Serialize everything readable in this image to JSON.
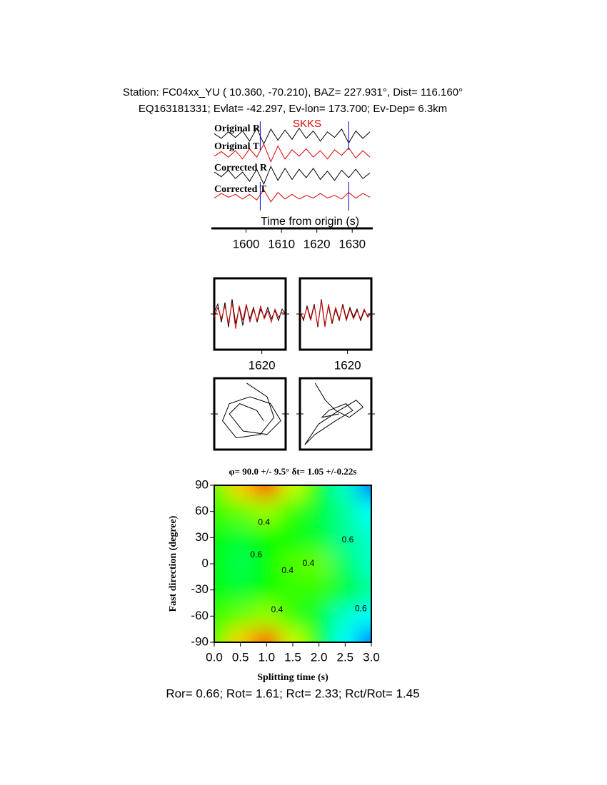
{
  "header": {
    "line1": "Station: FC04xx_YU (  10.360,  -70.210), BAZ=  227.931°, Dist=  116.160°",
    "line2": "EQ163181331; Evlat= -42.297, Ev-lon= 173.700; Ev-Dep=  6.3km"
  },
  "footer": "Ror= 0.66; Rot= 1.61; Rct= 2.33; Rct/Rot= 1.45",
  "chart_data": [
    {
      "type": "waveform",
      "annotation": "SKKS",
      "xlabel": "Time from origin (s)",
      "xlim": [
        1591,
        1635
      ],
      "xticks": [
        1600,
        1610,
        1620,
        1630
      ],
      "ylim": [
        -1,
        1
      ],
      "window": [
        1604,
        1629
      ],
      "x": [
        1591,
        1593,
        1595,
        1597,
        1599,
        1601,
        1603,
        1605,
        1607,
        1609,
        1611,
        1613,
        1615,
        1617,
        1619,
        1621,
        1623,
        1625,
        1627,
        1629,
        1631,
        1633,
        1635
      ],
      "series": [
        {
          "name": "Original R",
          "color": "#000000",
          "values": [
            0.2,
            -0.3,
            0.4,
            -0.2,
            0.5,
            -0.6,
            0.8,
            -0.9,
            0.7,
            -0.5,
            0.6,
            -0.4,
            0.8,
            -0.3,
            0.5,
            -0.6,
            0.4,
            -0.2,
            0.7,
            -0.8,
            0.5,
            -0.3,
            0.4
          ]
        },
        {
          "name": "Original T",
          "color": "#e00000",
          "values": [
            -0.3,
            0.2,
            -0.4,
            0.3,
            -0.6,
            0.5,
            -0.4,
            1.0,
            -0.9,
            0.8,
            -0.6,
            0.4,
            -0.3,
            0.5,
            -0.4,
            0.3,
            -0.6,
            0.4,
            -0.2,
            0.6,
            -0.5,
            0.3,
            -0.4
          ]
        },
        {
          "name": "Corrected R",
          "color": "#000000",
          "values": [
            0.3,
            -0.2,
            0.5,
            -0.4,
            0.3,
            -0.7,
            0.6,
            -1.0,
            0.9,
            -0.6,
            0.7,
            -0.5,
            0.6,
            -0.3,
            0.7,
            -0.5,
            0.4,
            -0.6,
            0.5,
            -0.3,
            0.6,
            -0.4,
            0.2
          ]
        },
        {
          "name": "Corrected T",
          "color": "#e00000",
          "values": [
            -0.2,
            0.3,
            -0.1,
            0.2,
            -0.3,
            0.2,
            -0.4,
            0.7,
            -0.6,
            0.4,
            -0.3,
            0.2,
            -0.3,
            0.1,
            -0.2,
            0.3,
            -0.2,
            0.1,
            -0.3,
            0.4,
            -0.2,
            0.3,
            -0.1
          ]
        }
      ]
    },
    {
      "type": "line",
      "xlim": [
        1600,
        1630
      ],
      "xticks": [
        1620
      ],
      "ylim": [
        -1,
        1
      ],
      "x": [
        1600,
        1601.5,
        1603,
        1604.5,
        1606,
        1607.5,
        1609,
        1610.5,
        1612,
        1613.5,
        1615,
        1616.5,
        1618,
        1619.5,
        1621,
        1622.5,
        1624,
        1625.5,
        1627,
        1628.5,
        1630
      ],
      "series": [
        {
          "color": "#000000",
          "values": [
            0.1,
            0.6,
            -0.5,
            0.7,
            -0.8,
            0.9,
            -0.6,
            0.4,
            -0.7,
            0.5,
            -0.3,
            0.4,
            -0.5,
            0.3,
            -0.2,
            0.4,
            -0.3,
            0.2,
            -0.4,
            0.3,
            0.0
          ]
        },
        {
          "color": "#e00000",
          "values": [
            -0.2,
            0.4,
            -0.3,
            0.5,
            -0.6,
            0.7,
            -0.9,
            0.5,
            -0.4,
            0.6,
            -0.5,
            0.3,
            -0.4,
            0.5,
            -0.3,
            0.2,
            -0.5,
            0.3,
            -0.2,
            0.1,
            0.0
          ]
        }
      ]
    },
    {
      "type": "line",
      "xlim": [
        1600,
        1630
      ],
      "xticks": [
        1620
      ],
      "ylim": [
        -1,
        1
      ],
      "x": [
        1600,
        1601.5,
        1603,
        1604.5,
        1606,
        1607.5,
        1609,
        1610.5,
        1612,
        1613.5,
        1615,
        1616.5,
        1618,
        1619.5,
        1621,
        1622.5,
        1624,
        1625.5,
        1627,
        1628.5,
        1630
      ],
      "series": [
        {
          "color": "#000000",
          "values": [
            0.2,
            -0.4,
            0.5,
            -0.3,
            0.6,
            -0.8,
            0.9,
            -0.7,
            0.5,
            -0.6,
            0.3,
            -0.4,
            0.6,
            -0.3,
            0.4,
            -0.2,
            0.3,
            -0.4,
            0.2,
            -0.1,
            0.1
          ]
        },
        {
          "color": "#e00000",
          "values": [
            0.1,
            -0.3,
            0.4,
            -0.4,
            0.5,
            -0.7,
            0.8,
            -0.8,
            0.6,
            -0.5,
            0.4,
            -0.3,
            0.5,
            -0.4,
            0.3,
            -0.3,
            0.2,
            -0.3,
            0.3,
            -0.2,
            0.0
          ]
        }
      ]
    },
    {
      "type": "particle",
      "xlim": [
        -1,
        1
      ],
      "ylim": [
        -1,
        1
      ],
      "x": [
        -0.1,
        0.5,
        0.7,
        0.3,
        -0.4,
        -0.8,
        -0.6,
        0.0,
        0.6,
        0.9,
        0.5,
        -0.2,
        -0.6,
        -0.3,
        0.2,
        0.4
      ],
      "y": [
        0.9,
        0.5,
        -0.1,
        -0.6,
        -0.7,
        -0.2,
        0.3,
        0.5,
        0.3,
        -0.2,
        -0.6,
        -0.5,
        0.0,
        0.3,
        0.1,
        -0.2
      ]
    },
    {
      "type": "particle",
      "xlim": [
        -1,
        1
      ],
      "ylim": [
        -1,
        1
      ],
      "x": [
        -0.6,
        -0.3,
        0.0,
        0.4,
        0.8,
        0.6,
        0.1,
        -0.5,
        -0.9,
        -0.6,
        0.0,
        0.5,
        0.3,
        -0.2,
        -0.4,
        0.1
      ],
      "y": [
        0.9,
        0.4,
        0.1,
        -0.1,
        0.2,
        0.4,
        0.1,
        -0.3,
        -0.9,
        -0.6,
        -0.2,
        0.1,
        0.3,
        0.1,
        -0.1,
        0.0
      ]
    },
    {
      "type": "contour",
      "title": "φ= 90.0 +/- 9.5° δt= 1.05 +/-0.22s",
      "xlabel": "Splitting time (s)",
      "ylabel": "Fast direction (degree)",
      "xlim": [
        0,
        3
      ],
      "ylim": [
        -90,
        90
      ],
      "xticks": [
        {
          "value": 0,
          "label": "0.0"
        },
        {
          "value": 0.5,
          "label": "0.5"
        },
        {
          "value": 1,
          "label": "1.0"
        },
        {
          "value": 1.5,
          "label": "1.5"
        },
        {
          "value": 2,
          "label": "2.0"
        },
        {
          "value": 2.5,
          "label": "2.5"
        },
        {
          "value": 3,
          "label": "3.0"
        }
      ],
      "yticks": [
        90,
        60,
        30,
        0,
        -30,
        -60,
        -90
      ],
      "grid_x": [
        0,
        0.5,
        1,
        1.5,
        2,
        2.5,
        3
      ],
      "grid_y": [
        90,
        60,
        30,
        0,
        -30,
        -60,
        -90
      ],
      "z": [
        [
          0.6,
          0.8,
          0.95,
          0.7,
          0.5,
          0.3,
          0.1
        ],
        [
          0.55,
          0.6,
          0.65,
          0.55,
          0.45,
          0.35,
          0.25
        ],
        [
          0.5,
          0.45,
          0.5,
          0.5,
          0.45,
          0.35,
          0.3
        ],
        [
          0.5,
          0.42,
          0.5,
          0.58,
          0.6,
          0.4,
          0.3
        ],
        [
          0.5,
          0.45,
          0.5,
          0.55,
          0.55,
          0.45,
          0.35
        ],
        [
          0.55,
          0.6,
          0.65,
          0.55,
          0.45,
          0.3,
          0.25
        ],
        [
          0.6,
          0.8,
          0.95,
          0.7,
          0.5,
          0.25,
          0.1
        ]
      ],
      "contour_labels": [
        {
          "text": "0.4",
          "x": 0.95,
          "y": 47
        },
        {
          "text": "0.6",
          "x": 0.8,
          "y": 10
        },
        {
          "text": "0.4",
          "x": 1.8,
          "y": 0
        },
        {
          "text": "0.4",
          "x": 1.4,
          "y": -8
        },
        {
          "text": "0.6",
          "x": 2.55,
          "y": 27
        },
        {
          "text": "0.4",
          "x": 1.2,
          "y": -53
        },
        {
          "text": "0.6",
          "x": 2.8,
          "y": -52
        }
      ]
    }
  ]
}
